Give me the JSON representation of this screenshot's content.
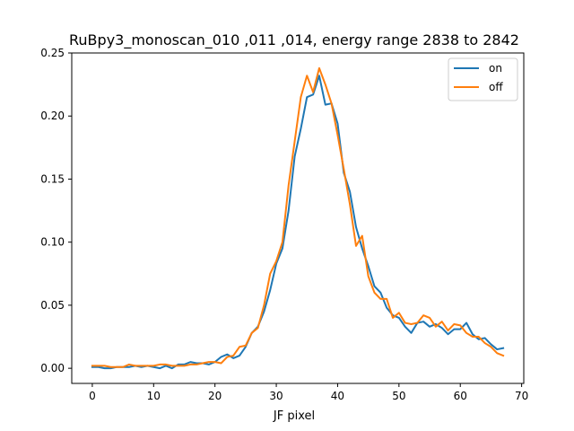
{
  "chart_data": {
    "type": "line",
    "title": "RuBpy3_monoscan_010 ,011 ,014, energy range 2838 to 2842",
    "xlabel": "JF pixel",
    "ylabel": "",
    "xlim": [
      -3.35,
      70.35
    ],
    "ylim": [
      -0.012,
      0.25
    ],
    "xticks": [
      0,
      10,
      20,
      30,
      40,
      50,
      60,
      70
    ],
    "yticks": [
      0.0,
      0.05,
      0.1,
      0.15,
      0.2,
      0.25
    ],
    "xtick_labels": [
      "0",
      "10",
      "20",
      "30",
      "40",
      "50",
      "60",
      "70"
    ],
    "ytick_labels": [
      "0.00",
      "0.05",
      "0.10",
      "0.15",
      "0.20",
      "0.25"
    ],
    "grid": false,
    "legend_position": "top-right",
    "x": [
      0,
      1,
      2,
      3,
      4,
      5,
      6,
      7,
      8,
      9,
      10,
      11,
      12,
      13,
      14,
      15,
      16,
      17,
      18,
      19,
      20,
      21,
      22,
      23,
      24,
      25,
      26,
      27,
      28,
      29,
      30,
      31,
      32,
      33,
      34,
      35,
      36,
      37,
      38,
      39,
      40,
      41,
      42,
      43,
      44,
      45,
      46,
      47,
      48,
      49,
      50,
      51,
      52,
      53,
      54,
      55,
      56,
      57,
      58,
      59,
      60,
      61,
      62,
      63,
      64,
      65,
      66,
      67
    ],
    "series": [
      {
        "name": "on",
        "color": "#1f77b4",
        "values": [
          0.001,
          0.001,
          0.0,
          0.0,
          0.001,
          0.001,
          0.001,
          0.002,
          0.001,
          0.002,
          0.001,
          0.0,
          0.002,
          0.0,
          0.003,
          0.003,
          0.005,
          0.004,
          0.004,
          0.003,
          0.005,
          0.009,
          0.011,
          0.008,
          0.01,
          0.017,
          0.028,
          0.033,
          0.045,
          0.062,
          0.083,
          0.095,
          0.125,
          0.168,
          0.19,
          0.215,
          0.217,
          0.232,
          0.209,
          0.21,
          0.194,
          0.155,
          0.14,
          0.112,
          0.095,
          0.081,
          0.065,
          0.06,
          0.048,
          0.042,
          0.04,
          0.033,
          0.028,
          0.036,
          0.037,
          0.033,
          0.035,
          0.032,
          0.027,
          0.031,
          0.031,
          0.036,
          0.027,
          0.023,
          0.024,
          0.019,
          0.015,
          0.016
        ]
      },
      {
        "name": "off",
        "color": "#ff7f0e",
        "values": [
          0.002,
          0.002,
          0.002,
          0.001,
          0.001,
          0.001,
          0.003,
          0.002,
          0.002,
          0.002,
          0.002,
          0.003,
          0.003,
          0.002,
          0.002,
          0.002,
          0.003,
          0.003,
          0.004,
          0.005,
          0.005,
          0.004,
          0.009,
          0.01,
          0.017,
          0.018,
          0.028,
          0.032,
          0.05,
          0.075,
          0.085,
          0.1,
          0.145,
          0.18,
          0.215,
          0.232,
          0.219,
          0.238,
          0.225,
          0.21,
          0.185,
          0.158,
          0.13,
          0.097,
          0.105,
          0.073,
          0.06,
          0.055,
          0.055,
          0.04,
          0.044,
          0.036,
          0.035,
          0.036,
          0.042,
          0.04,
          0.033,
          0.037,
          0.03,
          0.035,
          0.034,
          0.028,
          0.025,
          0.025,
          0.02,
          0.017,
          0.012,
          0.01
        ]
      }
    ]
  }
}
